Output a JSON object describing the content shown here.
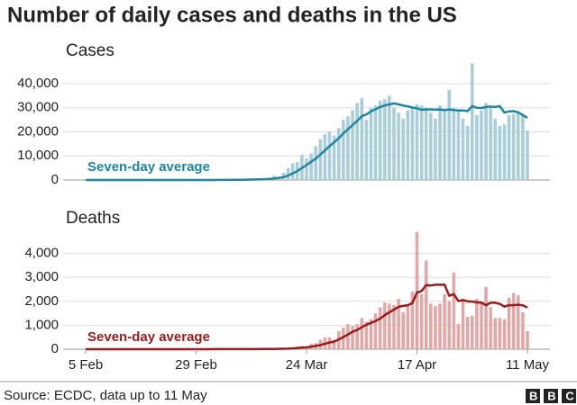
{
  "title": "Number of daily cases and deaths in the US",
  "source": "Source: ECDC, data up to 11 May",
  "logo": "BBC",
  "chart_data": [
    {
      "type": "bar",
      "title": "Cases",
      "ylim": [
        0,
        50000
      ],
      "yticks": [
        0,
        {
          "value": 10000,
          "label": "10,000"
        },
        {
          "value": 20000,
          "label": "20,000"
        },
        {
          "value": 30000,
          "label": "30,000"
        },
        {
          "value": 40000,
          "label": "40,000"
        }
      ],
      "grid": true,
      "series": [
        {
          "type": "bar",
          "color": "#a9cdd9",
          "values": [
            0,
            0,
            0,
            0,
            1,
            0,
            0,
            0,
            0,
            0,
            0,
            0,
            0,
            0,
            0,
            0,
            1,
            0,
            0,
            0,
            0,
            1,
            0,
            0,
            0,
            0,
            3,
            20,
            30,
            30,
            60,
            100,
            100,
            120,
            200,
            270,
            290,
            350,
            500,
            700,
            800,
            1800,
            1400,
            3000,
            5000,
            7000,
            7500,
            10500,
            9000,
            11000,
            14000,
            17000,
            19000,
            20000,
            18500,
            21500,
            25000,
            26500,
            29000,
            32000,
            34000,
            25000,
            30000,
            31000,
            33000,
            33500,
            35000,
            30000,
            28000,
            25500,
            29000,
            30000,
            31500,
            31000,
            30000,
            28000,
            25500,
            31000,
            29000,
            37500,
            30000,
            29000,
            25500,
            22500,
            48500,
            27000,
            29000,
            32000,
            30000,
            25500,
            22500,
            23000,
            27000,
            27500,
            28000,
            27000,
            20500
          ]
        },
        {
          "type": "line",
          "name": "Seven-day average",
          "color": "#1d86a0",
          "values": [
            0,
            0,
            0,
            0,
            0,
            0,
            0,
            0,
            0,
            0,
            0,
            0,
            0,
            0,
            0,
            0,
            0,
            0,
            0,
            0,
            0,
            0,
            0,
            0,
            0,
            5,
            8,
            10,
            15,
            20,
            30,
            45,
            60,
            80,
            120,
            150,
            180,
            220,
            270,
            350,
            440,
            640,
            810,
            1190,
            1860,
            2750,
            3690,
            4990,
            6200,
            7570,
            8860,
            10570,
            12290,
            14070,
            15640,
            17360,
            19290,
            21070,
            22790,
            24500,
            26500,
            27200,
            28500,
            29400,
            30300,
            31000,
            31400,
            31800,
            31400,
            30900,
            30600,
            30100,
            29800,
            29200,
            29300,
            29300,
            29200,
            29300,
            29000,
            29300,
            29100,
            28900,
            28900,
            28600,
            30700,
            30000,
            29900,
            30300,
            30500,
            30300,
            30700,
            28000,
            28500,
            28600,
            28100,
            27000,
            25800
          ]
        }
      ]
    },
    {
      "type": "bar",
      "title": "Deaths",
      "categories": [
        "5 Feb",
        null,
        null,
        null,
        null,
        null,
        null,
        null,
        null,
        null,
        null,
        null,
        null,
        null,
        null,
        null,
        null,
        null,
        null,
        null,
        null,
        null,
        null,
        null,
        "29 Feb",
        null,
        null,
        null,
        null,
        null,
        null,
        null,
        null,
        null,
        null,
        null,
        null,
        null,
        null,
        null,
        null,
        null,
        null,
        null,
        null,
        null,
        null,
        null,
        "24 Mar",
        null,
        null,
        null,
        null,
        null,
        null,
        null,
        null,
        null,
        null,
        null,
        null,
        null,
        null,
        null,
        null,
        null,
        null,
        null,
        null,
        null,
        null,
        null,
        "17 Apr",
        null,
        null,
        null,
        null,
        null,
        null,
        null,
        null,
        null,
        null,
        null,
        null,
        null,
        null,
        null,
        null,
        null,
        null,
        null,
        null,
        null,
        null,
        null,
        "11 May"
      ],
      "ylim": [
        0,
        5000
      ],
      "yticks": [
        0,
        {
          "value": 1000,
          "label": "1,000"
        },
        {
          "value": 2000,
          "label": "2,000"
        },
        {
          "value": 3000,
          "label": "3,000"
        },
        {
          "value": 4000,
          "label": "4,000"
        }
      ],
      "grid": true,
      "series": [
        {
          "type": "bar",
          "color": "#e2a8a8",
          "values": [
            0,
            0,
            0,
            0,
            0,
            0,
            0,
            0,
            0,
            0,
            0,
            0,
            0,
            0,
            0,
            0,
            0,
            0,
            0,
            0,
            0,
            0,
            0,
            0,
            0,
            1,
            1,
            3,
            3,
            2,
            1,
            4,
            4,
            1,
            6,
            4,
            8,
            7,
            11,
            8,
            12,
            23,
            30,
            40,
            50,
            70,
            110,
            140,
            110,
            225,
            250,
            400,
            500,
            500,
            400,
            750,
            900,
            1050,
            970,
            1050,
            1300,
            1150,
            1250,
            1500,
            1750,
            1950,
            1900,
            1850,
            2100,
            1550,
            1850,
            2400,
            4900,
            2300,
            3700,
            1900,
            1800,
            1900,
            2300,
            2000,
            3200,
            1050,
            2100,
            1350,
            1400,
            2100,
            2000,
            2600,
            1750,
            1300,
            1300,
            1250,
            2150,
            2350,
            2250,
            1550,
            750
          ]
        },
        {
          "type": "line",
          "name": "Seven-day average",
          "color": "#9a1b1b",
          "values": [
            0,
            0,
            0,
            0,
            0,
            0,
            0,
            0,
            0,
            0,
            0,
            0,
            0,
            0,
            0,
            0,
            0,
            0,
            0,
            0,
            0,
            0,
            0,
            0,
            0,
            0,
            1,
            1,
            2,
            2,
            2,
            2,
            3,
            3,
            3,
            4,
            5,
            5,
            6,
            7,
            8,
            11,
            14,
            18,
            24,
            33,
            48,
            66,
            79,
            106,
            135,
            178,
            226,
            277,
            317,
            407,
            504,
            614,
            724,
            803,
            917,
            1024,
            1096,
            1181,
            1280,
            1424,
            1540,
            1650,
            1770,
            1810,
            1840,
            1930,
            2370,
            2430,
            2680,
            2660,
            2690,
            2690,
            2700,
            2230,
            2300,
            2010,
            2050,
            2000,
            1990,
            1960,
            1940,
            1840,
            1940,
            1940,
            1890,
            1780,
            1840,
            1840,
            1860,
            1830,
            1740
          ]
        }
      ]
    }
  ]
}
